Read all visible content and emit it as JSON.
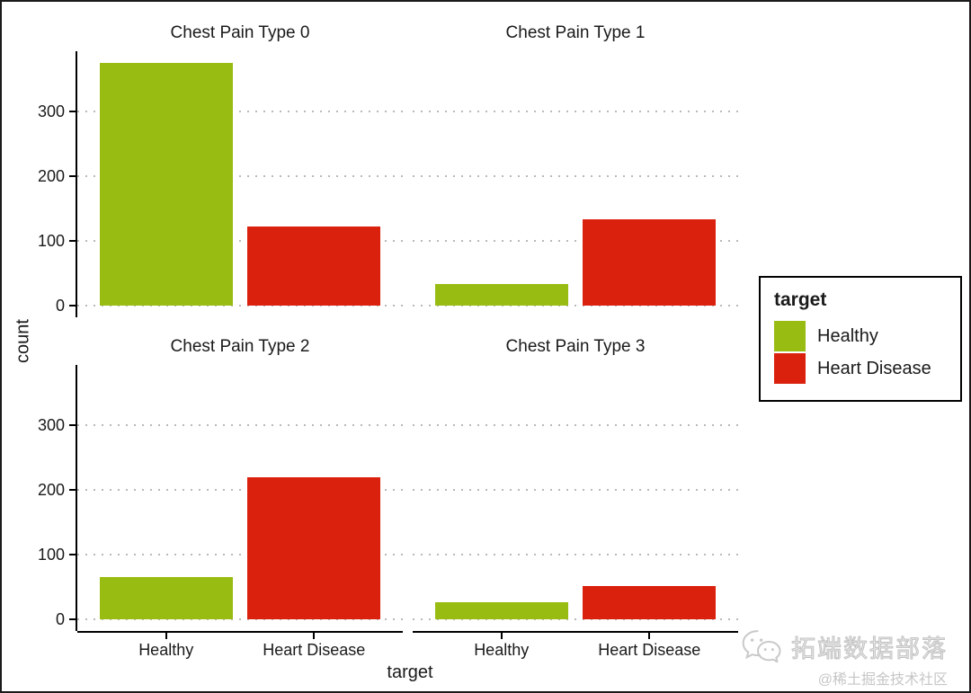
{
  "chart_data": {
    "type": "bar",
    "faceted": true,
    "title": "",
    "xlabel": "target",
    "ylabel": "count",
    "categories": [
      "Healthy",
      "Heart Disease"
    ],
    "yticks": [
      0,
      100,
      200,
      300
    ],
    "ylim": [
      0,
      395
    ],
    "grid": {
      "style": "dotted",
      "orientation": "horizontal",
      "color": "#b9b9b9"
    },
    "series_colors": {
      "Healthy": "#99BC12",
      "Heart Disease": "#DA210E"
    },
    "facets": [
      {
        "title": "Chest Pain Type 0",
        "values": [
          375,
          122
        ]
      },
      {
        "title": "Chest Pain Type 1",
        "values": [
          33,
          134
        ]
      },
      {
        "title": "Chest Pain Type 2",
        "values": [
          65,
          219
        ]
      },
      {
        "title": "Chest Pain Type 3",
        "values": [
          26,
          51
        ]
      }
    ]
  },
  "legend": {
    "title": "target",
    "position": "right",
    "entries": [
      {
        "label": "Healthy",
        "color": "#99BC12"
      },
      {
        "label": "Heart Disease",
        "color": "#DA210E"
      }
    ]
  },
  "watermark": {
    "brand": "拓端数据部落",
    "community": "@稀土掘金技术社区",
    "icon": "wechat-icon",
    "color": "#c6c6c6"
  }
}
